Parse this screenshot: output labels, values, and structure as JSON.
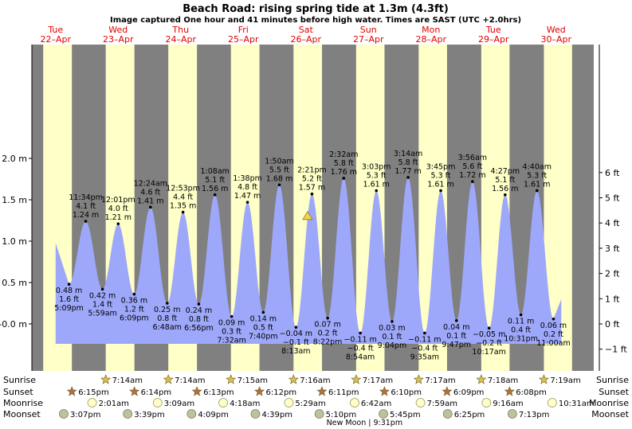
{
  "chart_data": {
    "type": "area",
    "title": "Beach Road: rising  spring tide at 1.3m (4.3ft)",
    "subtitle": "Image captured One hour and 41 minutes before high water. Times are SAST (UTC +2.0hrs)",
    "yaxis_left": {
      "unit": "m",
      "range": [
        -0.1,
        2.0
      ],
      "ticks": [
        "-0.0 m",
        "0.5 m",
        "1.0 m",
        "1.5 m",
        "2.0 m"
      ],
      "tick_values": [
        0,
        0.5,
        1.0,
        1.5,
        2.0
      ]
    },
    "yaxis_right": {
      "unit": "ft",
      "ticks": [
        "−1 ft",
        "0 ft",
        "1 ft",
        "2 ft",
        "3 ft",
        "4 ft",
        "5 ft",
        "6 ft"
      ],
      "tick_values": [
        -1,
        0,
        1,
        2,
        3,
        4,
        5,
        6
      ]
    },
    "days": [
      {
        "day": "Tue",
        "date": "22–Apr",
        "sunrise": null,
        "sunset": null,
        "moonrise": null,
        "moonset": null
      },
      {
        "day": "Wed",
        "date": "23–Apr",
        "sunrise": "7:14am",
        "sunset": "6:15pm",
        "moonrise": "2:01am",
        "moonset": "3:07pm"
      },
      {
        "day": "Thu",
        "date": "24–Apr",
        "sunrise": "7:14am",
        "sunset": "6:14pm",
        "moonrise": "3:09am",
        "moonset": "3:39pm"
      },
      {
        "day": "Fri",
        "date": "25–Apr",
        "sunrise": "7:15am",
        "sunset": "6:13pm",
        "moonrise": "4:18am",
        "moonset": "4:09pm"
      },
      {
        "day": "Sat",
        "date": "26–Apr",
        "sunrise": "7:16am",
        "sunset": "6:12pm",
        "moonrise": "5:29am",
        "moonset": "4:39pm"
      },
      {
        "day": "Sun",
        "date": "27–Apr",
        "sunrise": "7:17am",
        "sunset": "6:11pm",
        "moonrise": "6:42am",
        "moonset": "5:10pm"
      },
      {
        "day": "Mon",
        "date": "28–Apr",
        "sunrise": "7:17am",
        "sunset": "6:10pm",
        "moonrise": "7:59am",
        "moonset": "5:45pm"
      },
      {
        "day": "Tue",
        "date": "29–Apr",
        "sunrise": "7:18am",
        "sunset": "6:09pm",
        "moonrise": "9:16am",
        "moonset": "6:25pm"
      },
      {
        "day": "Wed",
        "date": "30–Apr",
        "sunrise": "7:19am",
        "sunset": "6:08pm",
        "moonrise": "10:31am",
        "moonset": "7:13pm"
      }
    ],
    "tides": [
      {
        "type": "low",
        "day_index": 0,
        "time": "5:09pm",
        "m": 0.48,
        "ft": "1.6 ft"
      },
      {
        "type": "high",
        "day_index": 0,
        "time": "11:34pm",
        "m": 1.24,
        "ft": "4.1 ft"
      },
      {
        "type": "low",
        "day_index": 1,
        "time": "5:59am",
        "m": 0.42,
        "ft": "1.4 ft"
      },
      {
        "type": "high",
        "day_index": 1,
        "time": "12:01pm",
        "m": 1.21,
        "ft": "4.0 ft"
      },
      {
        "type": "low",
        "day_index": 1,
        "time": "6:09pm",
        "m": 0.36,
        "ft": "1.2 ft"
      },
      {
        "type": "high",
        "day_index": 2,
        "time": "12:24am",
        "m": 1.41,
        "ft": "4.6 ft"
      },
      {
        "type": "low",
        "day_index": 2,
        "time": "6:48am",
        "m": 0.25,
        "ft": "0.8 ft"
      },
      {
        "type": "high",
        "day_index": 2,
        "time": "12:53pm",
        "m": 1.35,
        "ft": "4.4 ft"
      },
      {
        "type": "low",
        "day_index": 2,
        "time": "6:56pm",
        "m": 0.24,
        "ft": "0.8 ft"
      },
      {
        "type": "high",
        "day_index": 3,
        "time": "1:08am",
        "m": 1.56,
        "ft": "5.1 ft"
      },
      {
        "type": "low",
        "day_index": 3,
        "time": "7:32am",
        "m": 0.09,
        "ft": "0.3 ft"
      },
      {
        "type": "high",
        "day_index": 3,
        "time": "1:38pm",
        "m": 1.47,
        "ft": "4.8 ft"
      },
      {
        "type": "low",
        "day_index": 3,
        "time": "7:40pm",
        "m": 0.14,
        "ft": "0.5 ft"
      },
      {
        "type": "high",
        "day_index": 4,
        "time": "1:50am",
        "m": 1.68,
        "ft": "5.5 ft"
      },
      {
        "type": "low",
        "day_index": 4,
        "time": "8:13am",
        "m": -0.04,
        "ft": "−0.1 ft"
      },
      {
        "type": "high",
        "day_index": 4,
        "time": "2:21pm",
        "m": 1.57,
        "ft": "5.2 ft"
      },
      {
        "type": "low",
        "day_index": 4,
        "time": "8:22pm",
        "m": 0.07,
        "ft": "0.2 ft"
      },
      {
        "type": "high",
        "day_index": 5,
        "time": "2:32am",
        "m": 1.76,
        "ft": "5.8 ft"
      },
      {
        "type": "low",
        "day_index": 5,
        "time": "8:54am",
        "m": -0.11,
        "ft": "−0.4 ft"
      },
      {
        "type": "high",
        "day_index": 5,
        "time": "3:03pm",
        "m": 1.61,
        "ft": "5.3 ft"
      },
      {
        "type": "low",
        "day_index": 5,
        "time": "9:04pm",
        "m": 0.03,
        "ft": "0.1 ft"
      },
      {
        "type": "high",
        "day_index": 6,
        "time": "3:14am",
        "m": 1.77,
        "ft": "5.8 ft"
      },
      {
        "type": "low",
        "day_index": 6,
        "time": "9:35am",
        "m": -0.11,
        "ft": "−0.4 ft"
      },
      {
        "type": "high",
        "day_index": 6,
        "time": "3:45pm",
        "m": 1.61,
        "ft": "5.3 ft"
      },
      {
        "type": "low",
        "day_index": 6,
        "time": "9:47pm",
        "m": 0.04,
        "ft": "0.1 ft"
      },
      {
        "type": "high",
        "day_index": 7,
        "time": "3:56am",
        "m": 1.72,
        "ft": "5.6 ft"
      },
      {
        "type": "low",
        "day_index": 7,
        "time": "10:17am",
        "m": -0.05,
        "ft": "−0.2 ft"
      },
      {
        "type": "high",
        "day_index": 7,
        "time": "4:27pm",
        "m": 1.56,
        "ft": "5.1 ft"
      },
      {
        "type": "low",
        "day_index": 7,
        "time": "10:31pm",
        "m": 0.11,
        "ft": "0.4 ft"
      },
      {
        "type": "high",
        "day_index": 8,
        "time": "4:40am",
        "m": 1.61,
        "ft": "5.3 ft"
      },
      {
        "type": "low",
        "day_index": 8,
        "time": "11:00am",
        "m": 0.06,
        "ft": "0.2 ft"
      }
    ],
    "current": {
      "day_index": 4,
      "time": "12:40pm",
      "m": 1.3,
      "ft": "4.3ft"
    },
    "tide_start": {
      "day_index": 0,
      "time": "12:00pm",
      "m": 0.98
    },
    "tide_end": {
      "day_index": 8,
      "time": "2:00pm",
      "m": 0.3
    },
    "row_labels": [
      "Sunrise",
      "Sunset",
      "Moonrise",
      "Moonset"
    ],
    "moon_phase": {
      "label": "New Moon",
      "time": "9:31pm",
      "day_index": 5
    },
    "colors": {
      "day": "#ffffc8",
      "night": "#808080",
      "water": "#9ea8fa",
      "text_date": "#e00000",
      "sun_marker": "#d8c24a",
      "sunset_marker": "#b07040",
      "moonrise_marker": "#ffffc8",
      "moonset_marker": "#c0c0a0",
      "current_marker": "#f3d44a"
    }
  }
}
